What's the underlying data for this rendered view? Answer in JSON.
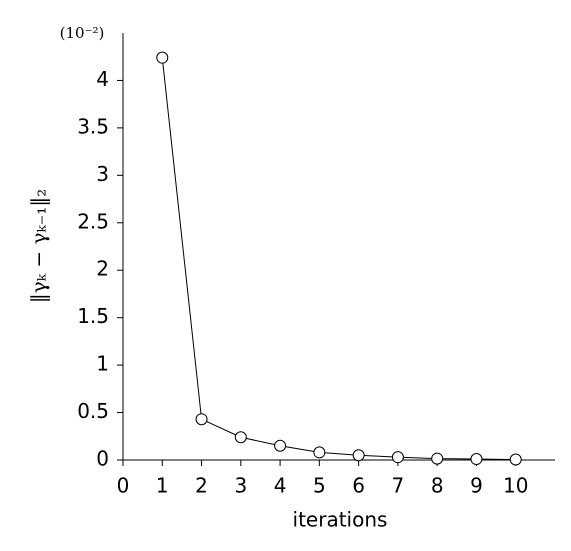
{
  "chart_data": {
    "type": "line",
    "x_label": "iterations",
    "y_label": "‖γₖ − γₖ₋₁‖₂",
    "y_scale_label": "(10⁻²)",
    "x": [
      1,
      2,
      3,
      4,
      5,
      6,
      7,
      8,
      9,
      10
    ],
    "series": [
      {
        "color": "#000000",
        "values": [
          4.24,
          0.43,
          0.24,
          0.15,
          0.08,
          0.05,
          0.03,
          0.015,
          0.01,
          0.005
        ]
      }
    ],
    "xlim": [
      0,
      11
    ],
    "xticks": [
      0,
      1,
      2,
      3,
      4,
      5,
      6,
      7,
      8,
      9,
      10
    ],
    "ylim": [
      0,
      4.5
    ],
    "yticks": [
      0,
      0.5,
      1,
      1.5,
      2,
      2.5,
      3,
      3.5,
      4
    ],
    "grid": false
  }
}
